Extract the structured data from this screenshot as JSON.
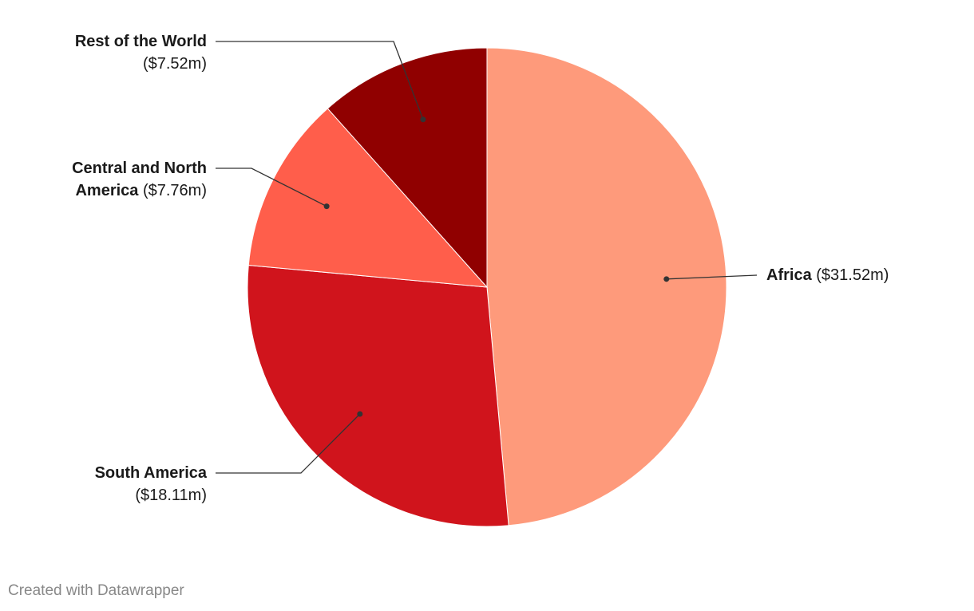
{
  "chart_data": {
    "type": "pie",
    "categories": [
      "Africa",
      "South America",
      "Central and North America",
      "Rest of the World"
    ],
    "values": [
      31.52,
      18.11,
      7.76,
      7.52
    ],
    "value_labels": [
      "($31.52m)",
      "($18.11m)",
      "($7.76m)",
      "($7.52m)"
    ],
    "colors": [
      "#fe9a7b",
      "#d0141c",
      "#ff5e4b",
      "#900000"
    ],
    "credit": "Created with Datawrapper"
  }
}
